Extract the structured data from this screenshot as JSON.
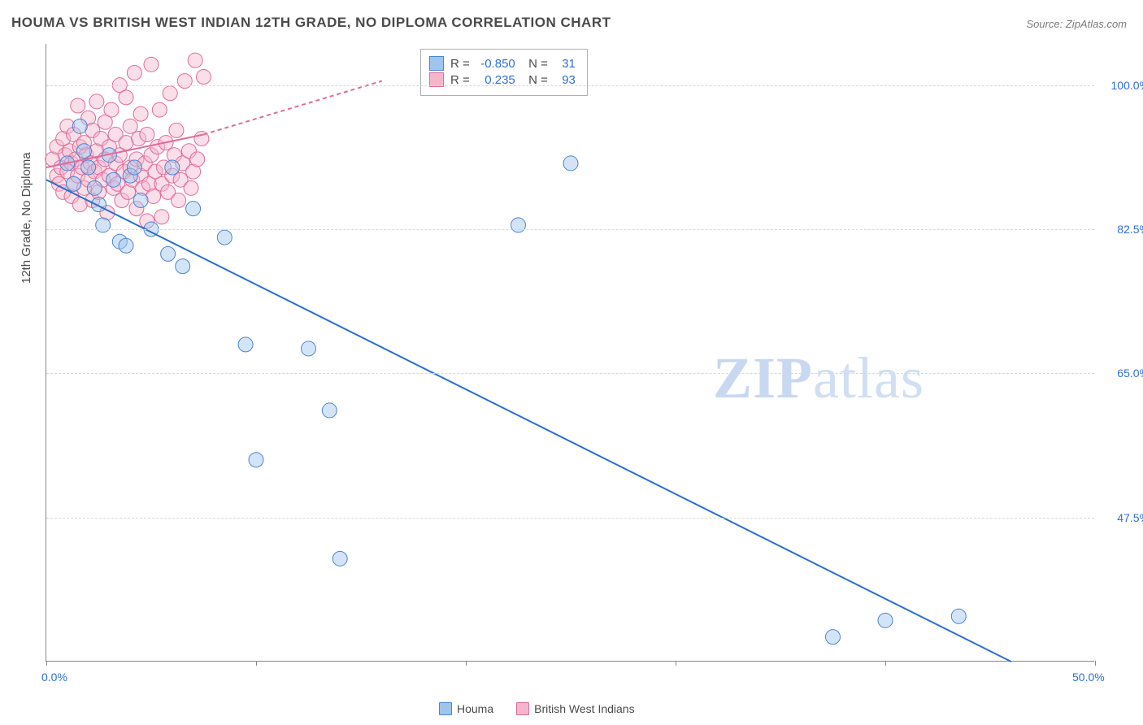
{
  "title": "HOUMA VS BRITISH WEST INDIAN 12TH GRADE, NO DIPLOMA CORRELATION CHART",
  "source": "Source: ZipAtlas.com",
  "y_axis_title": "12th Grade, No Diploma",
  "watermark_bold": "ZIP",
  "watermark_rest": "atlas",
  "chart": {
    "type": "scatter",
    "xlim": [
      0,
      50
    ],
    "ylim": [
      30,
      105
    ],
    "x_ticks": [
      0,
      10,
      20,
      30,
      40,
      50
    ],
    "y_gridlines": [
      47.5,
      65.0,
      82.5,
      100.0
    ],
    "y_labels": [
      "47.5%",
      "65.0%",
      "82.5%",
      "100.0%"
    ],
    "x_labels_shown": {
      "0": "0.0%",
      "50": "50.0%"
    },
    "background_color": "#ffffff",
    "grid_color": "#d8d8d8",
    "marker_radius": 9,
    "marker_opacity": 0.45,
    "line_width": 2.0,
    "series": [
      {
        "name": "Houma",
        "color_fill": "#9fc4ee",
        "color_stroke": "#4a86d2",
        "line_color": "#2a6fd0",
        "R": "-0.850",
        "N": "31",
        "trend": {
          "x1": 0,
          "y1": 88.5,
          "x2": 46,
          "y2": 30
        },
        "points": [
          [
            1.0,
            90.5
          ],
          [
            1.3,
            88.0
          ],
          [
            1.6,
            95.0
          ],
          [
            1.8,
            92.0
          ],
          [
            2.0,
            90.0
          ],
          [
            2.3,
            87.5
          ],
          [
            2.5,
            85.5
          ],
          [
            2.7,
            83.0
          ],
          [
            3.0,
            91.5
          ],
          [
            3.2,
            88.5
          ],
          [
            3.5,
            81.0
          ],
          [
            3.8,
            80.5
          ],
          [
            4.0,
            89.0
          ],
          [
            4.2,
            90.0
          ],
          [
            4.5,
            86.0
          ],
          [
            5.0,
            82.5
          ],
          [
            5.8,
            79.5
          ],
          [
            6.0,
            90.0
          ],
          [
            6.5,
            78.0
          ],
          [
            7.0,
            85.0
          ],
          [
            8.5,
            81.5
          ],
          [
            9.5,
            68.5
          ],
          [
            10.0,
            54.5
          ],
          [
            12.5,
            68.0
          ],
          [
            13.5,
            60.5
          ],
          [
            14.0,
            42.5
          ],
          [
            22.5,
            83.0
          ],
          [
            25.0,
            90.5
          ],
          [
            37.5,
            33.0
          ],
          [
            40.0,
            35.0
          ],
          [
            43.5,
            35.5
          ]
        ]
      },
      {
        "name": "British West Indians",
        "color_fill": "#f5b6cb",
        "color_stroke": "#e06c99",
        "line_color": "#e06c99",
        "R": "0.235",
        "N": "93",
        "trend_solid": {
          "x1": 0,
          "y1": 90.0,
          "x2": 7.5,
          "y2": 94.0
        },
        "trend_dashed": {
          "x1": 7.5,
          "y1": 94.0,
          "x2": 16,
          "y2": 100.5
        },
        "points": [
          [
            0.3,
            91.0
          ],
          [
            0.5,
            89.0
          ],
          [
            0.5,
            92.5
          ],
          [
            0.6,
            88.0
          ],
          [
            0.7,
            90.0
          ],
          [
            0.8,
            93.5
          ],
          [
            0.8,
            87.0
          ],
          [
            0.9,
            91.5
          ],
          [
            1.0,
            95.0
          ],
          [
            1.0,
            89.5
          ],
          [
            1.1,
            92.0
          ],
          [
            1.2,
            86.5
          ],
          [
            1.2,
            90.5
          ],
          [
            1.3,
            94.0
          ],
          [
            1.3,
            88.0
          ],
          [
            1.4,
            91.0
          ],
          [
            1.5,
            97.5
          ],
          [
            1.5,
            89.0
          ],
          [
            1.6,
            92.5
          ],
          [
            1.6,
            85.5
          ],
          [
            1.7,
            90.0
          ],
          [
            1.8,
            93.0
          ],
          [
            1.8,
            87.5
          ],
          [
            1.9,
            91.5
          ],
          [
            2.0,
            96.0
          ],
          [
            2.0,
            88.5
          ],
          [
            2.1,
            90.5
          ],
          [
            2.2,
            94.5
          ],
          [
            2.2,
            86.0
          ],
          [
            2.3,
            89.5
          ],
          [
            2.4,
            92.0
          ],
          [
            2.4,
            98.0
          ],
          [
            2.5,
            87.0
          ],
          [
            2.5,
            90.0
          ],
          [
            2.6,
            93.5
          ],
          [
            2.7,
            88.5
          ],
          [
            2.8,
            91.0
          ],
          [
            2.8,
            95.5
          ],
          [
            2.9,
            84.5
          ],
          [
            3.0,
            89.0
          ],
          [
            3.0,
            92.5
          ],
          [
            3.1,
            97.0
          ],
          [
            3.2,
            87.5
          ],
          [
            3.3,
            90.5
          ],
          [
            3.3,
            94.0
          ],
          [
            3.4,
            88.0
          ],
          [
            3.5,
            91.5
          ],
          [
            3.5,
            100.0
          ],
          [
            3.6,
            86.0
          ],
          [
            3.7,
            89.5
          ],
          [
            3.8,
            93.0
          ],
          [
            3.8,
            98.5
          ],
          [
            3.9,
            87.0
          ],
          [
            4.0,
            90.0
          ],
          [
            4.0,
            95.0
          ],
          [
            4.1,
            88.5
          ],
          [
            4.2,
            101.5
          ],
          [
            4.3,
            91.0
          ],
          [
            4.3,
            85.0
          ],
          [
            4.4,
            93.5
          ],
          [
            4.5,
            89.0
          ],
          [
            4.5,
            96.5
          ],
          [
            4.6,
            87.5
          ],
          [
            4.7,
            90.5
          ],
          [
            4.8,
            94.0
          ],
          [
            4.8,
            83.5
          ],
          [
            4.9,
            88.0
          ],
          [
            5.0,
            91.5
          ],
          [
            5.0,
            102.5
          ],
          [
            5.1,
            86.5
          ],
          [
            5.2,
            89.5
          ],
          [
            5.3,
            92.5
          ],
          [
            5.4,
            97.0
          ],
          [
            5.5,
            88.0
          ],
          [
            5.5,
            84.0
          ],
          [
            5.6,
            90.0
          ],
          [
            5.7,
            93.0
          ],
          [
            5.8,
            87.0
          ],
          [
            5.9,
            99.0
          ],
          [
            6.0,
            89.0
          ],
          [
            6.1,
            91.5
          ],
          [
            6.2,
            94.5
          ],
          [
            6.3,
            86.0
          ],
          [
            6.4,
            88.5
          ],
          [
            6.5,
            90.5
          ],
          [
            6.6,
            100.5
          ],
          [
            6.8,
            92.0
          ],
          [
            6.9,
            87.5
          ],
          [
            7.0,
            89.5
          ],
          [
            7.1,
            103.0
          ],
          [
            7.2,
            91.0
          ],
          [
            7.4,
            93.5
          ],
          [
            7.5,
            101.0
          ]
        ]
      }
    ]
  },
  "bottom_legend": [
    {
      "label": "Houma",
      "fill": "#9fc4ee",
      "stroke": "#4a86d2"
    },
    {
      "label": "British West Indians",
      "fill": "#f5b6cb",
      "stroke": "#e06c99"
    }
  ]
}
